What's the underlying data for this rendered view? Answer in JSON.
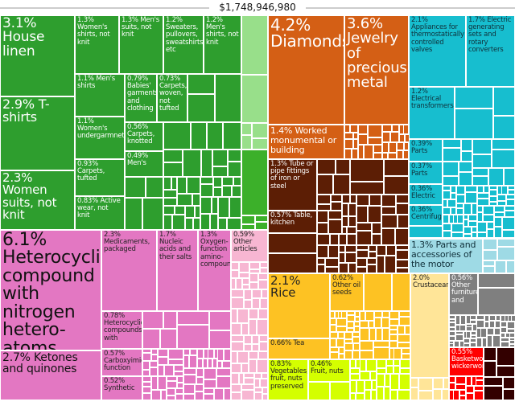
{
  "chart_data": {
    "type": "treemap",
    "title": "$1,748,946,980",
    "groups": {
      "textiles": "#2e9e2e",
      "textiles_light": "#98df8a",
      "textiles_bright": "#3cb02a",
      "precious": "#d45f15",
      "metals": "#5c1e05",
      "machines": "#17becf",
      "transport": "#9edae5",
      "chemicals": "#e377c2",
      "chemicals_light": "#f7b6d2",
      "vegetable": "#fdc223",
      "foodstuffs": "#d4ff00",
      "animal": "#ffe598",
      "misc": "#7f7f7f",
      "wood": "#ff0000",
      "hides": "#330000"
    },
    "cells": [
      {
        "label": "3.1% House linen",
        "share": 3.1,
        "group": "textiles"
      },
      {
        "label": "2.9% T-shirts",
        "share": 2.9,
        "group": "textiles"
      },
      {
        "label": "2.3% Women suits, not knit",
        "share": 2.3,
        "group": "textiles"
      },
      {
        "label": "1.3% Women's shirts, not knit",
        "share": 1.3,
        "group": "textiles"
      },
      {
        "label": "1.3% Men's suits, not knit",
        "share": 1.3,
        "group": "textiles"
      },
      {
        "label": "1.2% Sweaters, pullovers, sweatshirts, etc",
        "share": 1.2,
        "group": "textiles"
      },
      {
        "label": "1.2% Men's shirts, not knit",
        "share": 1.2,
        "group": "textiles"
      },
      {
        "label": "1.1% Men's shirts",
        "share": 1.1,
        "group": "textiles"
      },
      {
        "label": "0.79% Babies' garments and clothing",
        "share": 0.79,
        "group": "textiles"
      },
      {
        "label": "0.73% Carpets, woven, not tufted",
        "share": 0.73,
        "group": "textiles"
      },
      {
        "label": "1.1% Women's undergarmnets",
        "share": 1.1,
        "group": "textiles"
      },
      {
        "label": "0.56% Carpets, knotted",
        "share": 0.56,
        "group": "textiles"
      },
      {
        "label": "0.49% Men's",
        "share": 0.49,
        "group": "textiles"
      },
      {
        "label": "0.93% Carpets, tufted",
        "share": 0.93,
        "group": "textiles"
      },
      {
        "label": "0.83% Active wear, not knit",
        "share": 0.83,
        "group": "textiles"
      },
      {
        "label": "4.2% Diamonds",
        "share": 4.2,
        "group": "precious"
      },
      {
        "label": "3.6% Jewelry of precious metal",
        "share": 3.6,
        "group": "precious"
      },
      {
        "label": "1.4% Worked monumental or building",
        "share": 1.4,
        "group": "precious"
      },
      {
        "label": "1.3% Tube or pipe fittings of iron or steel",
        "share": 1.3,
        "group": "metals"
      },
      {
        "label": "0.57% Table, kitchen",
        "share": 0.57,
        "group": "metals"
      },
      {
        "label": "2.1% Appliances for thermostatically controlled valves",
        "share": 2.1,
        "group": "machines"
      },
      {
        "label": "1.7% Electric generating sets and rotary converters",
        "share": 1.7,
        "group": "machines"
      },
      {
        "label": "1.2% Electrical transformers",
        "share": 1.2,
        "group": "machines"
      },
      {
        "label": "0.39% Parts",
        "share": 0.39,
        "group": "machines"
      },
      {
        "label": "0.37% Parts",
        "share": 0.37,
        "group": "machines"
      },
      {
        "label": "0.36% Electric",
        "share": 0.36,
        "group": "machines"
      },
      {
        "label": "0.36% Centrifuge",
        "share": 0.36,
        "group": "machines"
      },
      {
        "label": "1.3% Parts and accessories of the motor",
        "share": 1.3,
        "group": "transport"
      },
      {
        "label": "6.1% Heterocyclic compound with nitrogen hetero-atoms",
        "share": 6.1,
        "group": "chemicals"
      },
      {
        "label": "2.7% Ketones and quinones",
        "share": 2.7,
        "group": "chemicals"
      },
      {
        "label": "2.3% Medicaments, packaged",
        "share": 2.3,
        "group": "chemicals"
      },
      {
        "label": "1.7% Nucleic acids and their salts",
        "share": 1.7,
        "group": "chemicals"
      },
      {
        "label": "1.3% Oxygen-function amino-compounds",
        "share": 1.3,
        "group": "chemicals"
      },
      {
        "label": "0.78% Heterocyclic compounds with",
        "share": 0.78,
        "group": "chemicals"
      },
      {
        "label": "0.57% Carboxyimide function",
        "share": 0.57,
        "group": "chemicals"
      },
      {
        "label": "0.52% Synthetic",
        "share": 0.52,
        "group": "chemicals"
      },
      {
        "label": "0.59% Other articles",
        "share": 0.59,
        "group": "chemicals_light"
      },
      {
        "label": "2.1% Rice",
        "share": 2.1,
        "group": "vegetable"
      },
      {
        "label": "0.62% Other oil seeds",
        "share": 0.62,
        "group": "vegetable"
      },
      {
        "label": "0.66% Tea",
        "share": 0.66,
        "group": "vegetable"
      },
      {
        "label": "0.83% Vegetables, fruit, nuts preserved",
        "share": 0.83,
        "group": "foodstuffs"
      },
      {
        "label": "0.46% Fruit, nuts",
        "share": 0.46,
        "group": "foodstuffs"
      },
      {
        "label": "2.0% Crustaceans",
        "share": 2.0,
        "group": "animal"
      },
      {
        "label": "0.56% Other furniture and",
        "share": 0.56,
        "group": "misc"
      },
      {
        "label": "0.55% Basketwork wickerwork",
        "share": 0.55,
        "group": "wood"
      }
    ]
  }
}
